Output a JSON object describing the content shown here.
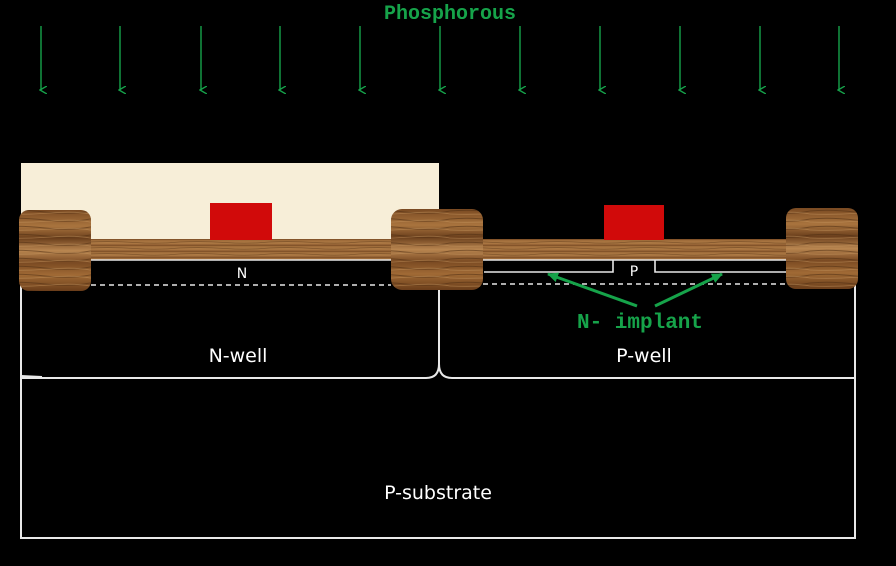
{
  "title": "Phosphorous",
  "colors": {
    "background": "#000000",
    "accent_green": "#16a34a",
    "outline": "#ffffff",
    "gate_red": "#d10a0a",
    "oxide_brown": "#8b5a2b",
    "photoresist": "#f6ebd2"
  },
  "labels": {
    "n_region": "N",
    "p_region": "P",
    "n_well": "N-well",
    "p_well": "P-well",
    "p_substrate": "P-substrate",
    "implant": "N- implant"
  },
  "icons": {
    "arrow": "down-arrow-icon"
  }
}
